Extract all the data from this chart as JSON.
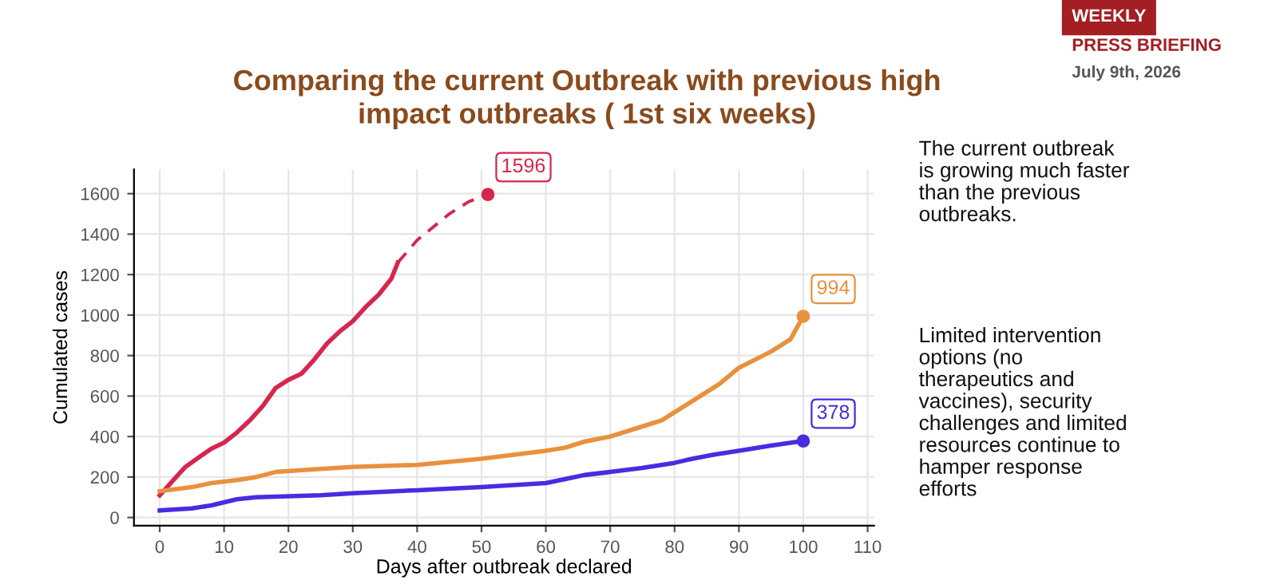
{
  "chart_data": {
    "type": "line",
    "title": "Comparing the current Outbreak with previous high\nimpact outbreaks ( 1st six weeks)",
    "xlabel": "Days after outbreak declared",
    "ylabel": "Cumulated cases",
    "xlim": [
      -4,
      111
    ],
    "ylim": [
      -40,
      1720
    ],
    "xticks": [
      0,
      10,
      20,
      30,
      40,
      50,
      60,
      70,
      80,
      90,
      100,
      110
    ],
    "yticks": [
      0,
      200,
      400,
      600,
      800,
      1000,
      1200,
      1400,
      1600
    ],
    "grid": true,
    "marker": "none",
    "series": [
      {
        "color": "#d6264d",
        "line_style": "solid",
        "x": [
          0,
          2,
          4,
          6,
          8,
          10,
          12,
          14,
          16,
          18,
          20,
          22,
          24,
          26,
          28,
          30,
          32,
          34,
          36,
          37
        ],
        "values": [
          110,
          180,
          250,
          295,
          340,
          370,
          420,
          480,
          550,
          640,
          680,
          710,
          780,
          860,
          920,
          970,
          1040,
          1100,
          1180,
          1260
        ]
      },
      {
        "color": "#d6264d",
        "line_style": "dashed",
        "x": [
          37,
          40,
          45,
          48,
          51
        ],
        "values": [
          1260,
          1370,
          1500,
          1560,
          1596
        ],
        "value_labels": [
          null,
          null,
          null,
          null,
          "1596"
        ]
      },
      {
        "color": "#e8913d",
        "line_style": "solid",
        "x": [
          0,
          5,
          8,
          12,
          15,
          18,
          25,
          30,
          40,
          50,
          55,
          60,
          63,
          66,
          70,
          75,
          78,
          82,
          84,
          87,
          90,
          95,
          98,
          100
        ],
        "values": [
          130,
          150,
          170,
          185,
          200,
          225,
          240,
          250,
          260,
          290,
          310,
          330,
          345,
          375,
          400,
          450,
          480,
          560,
          600,
          660,
          740,
          820,
          880,
          994
        ],
        "value_labels": [
          null,
          null,
          null,
          null,
          null,
          null,
          null,
          null,
          null,
          null,
          null,
          null,
          null,
          null,
          null,
          null,
          null,
          null,
          null,
          null,
          null,
          null,
          null,
          "994"
        ]
      },
      {
        "color": "#4a2be0",
        "line_style": "solid",
        "x": [
          0,
          5,
          8,
          12,
          15,
          25,
          30,
          40,
          50,
          55,
          60,
          63,
          66,
          70,
          75,
          80,
          82,
          86,
          90,
          95,
          100
        ],
        "values": [
          35,
          45,
          60,
          90,
          100,
          110,
          120,
          135,
          150,
          160,
          170,
          190,
          210,
          225,
          245,
          270,
          285,
          310,
          330,
          355,
          378
        ],
        "value_labels": [
          null,
          null,
          null,
          null,
          null,
          null,
          null,
          null,
          null,
          null,
          null,
          null,
          null,
          null,
          null,
          null,
          null,
          null,
          null,
          null,
          "378"
        ]
      }
    ],
    "annotations": [
      "WEEKLY",
      "PRESS BRIEFING",
      "July 9th, 2026",
      "The current outbreak\nis growing much faster\nthan the previous\noutbreaks.",
      "Limited intervention\noptions (no\ntherapeutics and\nvaccines), security\nchallenges and limited\nresources continue to\nhamper response\nefforts"
    ]
  }
}
